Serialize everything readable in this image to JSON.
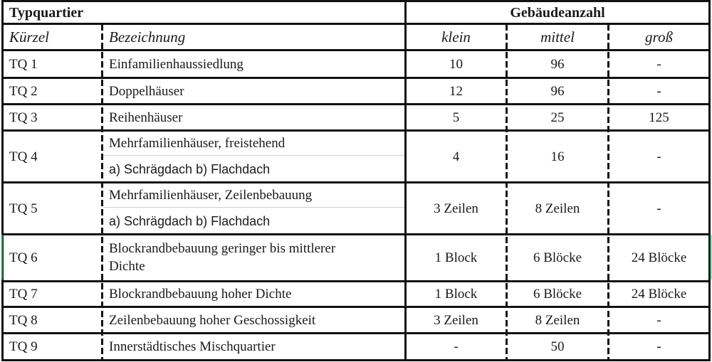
{
  "table": {
    "header": {
      "group_left": "Typquartier",
      "group_right": "Gebäudeanzahl",
      "col_kuerzel": "Kürzel",
      "col_bezeichnung": "Bezeichnung",
      "col_klein": "klein",
      "col_mittel": "mittel",
      "col_gross": "groß"
    },
    "rows": [
      {
        "code": "TQ 1",
        "name": "Einfamilienhaussiedlung",
        "klein": "10",
        "mittel": "96",
        "gross": "-"
      },
      {
        "code": "TQ 2",
        "name": "Doppelhäuser",
        "klein": "12",
        "mittel": "96",
        "gross": "-"
      },
      {
        "code": "TQ 3",
        "name": "Reihenhäuser",
        "klein": "5",
        "mittel": "25",
        "gross": "125"
      },
      {
        "code": "TQ 4",
        "name_line1": "Mehrfamilienhäuser, freistehend",
        "name_line2": "a) Schrägdach b) Flachdach",
        "klein": "4",
        "mittel": "16",
        "gross": "-"
      },
      {
        "code": "TQ 5",
        "name_line1": "Mehrfamilienhäuser, Zeilenbebauung",
        "name_line2": "a) Schrägdach  b) Flachdach",
        "klein": "3 Zeilen",
        "mittel": "8 Zeilen",
        "gross": "-"
      },
      {
        "code": "TQ 6",
        "name_line1": "Blockrandbebauung geringer bis mittlerer",
        "name_line2": "Dichte",
        "klein": "1 Block",
        "mittel": "6 Blöcke",
        "gross": "24 Blöcke"
      },
      {
        "code": "TQ 7",
        "name": "Blockrandbebauung hoher Dichte",
        "klein": "1 Block",
        "mittel": "6 Blöcke",
        "gross": "24 Blöcke"
      },
      {
        "code": "TQ 8",
        "name": "Zeilenbebauung hoher Geschossigkeit",
        "klein": "3 Zeilen",
        "mittel": "8 Zeilen",
        "gross": "-"
      },
      {
        "code": "TQ 9",
        "name": "Innerstädtisches Mischquartier",
        "klein": "-",
        "mittel": "50",
        "gross": "-"
      }
    ]
  }
}
